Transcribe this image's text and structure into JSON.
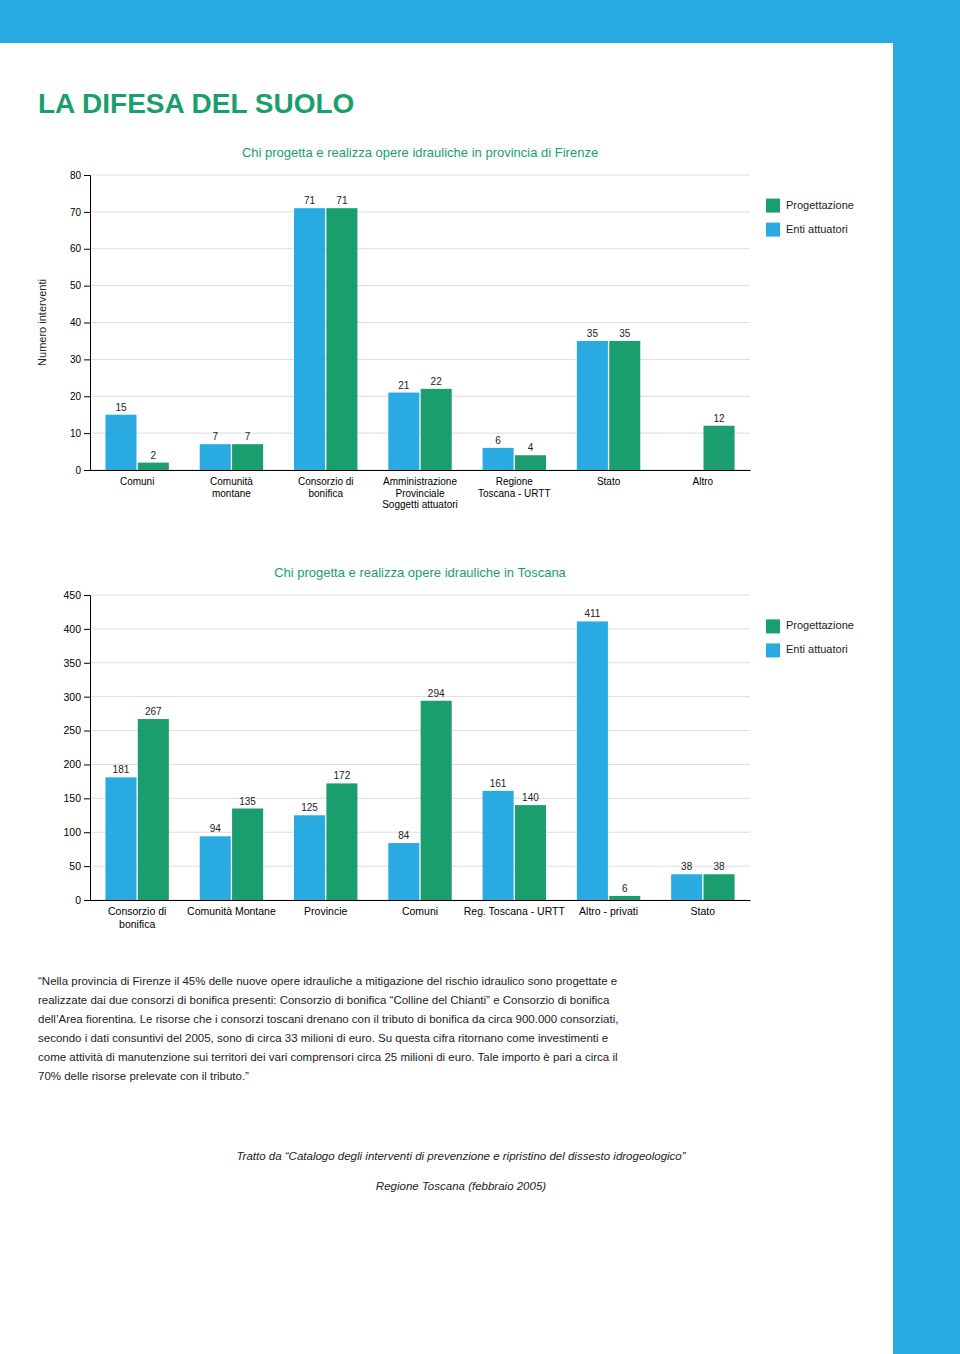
{
  "title": "LA DIFESA DEL SUOLO",
  "body": [
    "“Nella provincia di Firenze il 45% delle nuove opere idrauliche a mitigazione del rischio idraulico sono progettate e",
    "realizzate dai due consorzi di bonifica presenti: Consorzio di bonifica “Colline del Chianti” e Consorzio di bonifica",
    "dell’Area fiorentina. Le risorse che i consorzi toscani drenano con il tributo di bonifica da circa 900.000 consorziati,",
    "secondo i dati consuntivi del 2005, sono di circa 33 milioni di euro. Su questa cifra ritornano come investimenti e",
    "come attività di manutenzione sui territori dei vari comprensori circa 25 milioni di euro. Tale importo è pari a circa il",
    "70% delle risorse prelevate con il tributo.”"
  ],
  "source": [
    "Tratto da “Catalogo degli interventi di prevenzione e ripristino del dissesto idrogeologico”",
    "Regione Toscana (febbraio 2005)"
  ],
  "chart_data": [
    {
      "type": "bar",
      "title": "Chi progetta e realizza opere idrauliche in provincia di Firenze",
      "categories": [
        "Comuni",
        "Comunità\nmontane",
        "Consorzio di\nbonifica",
        "Amministrazione\nProvinciale\nSoggetti attuatori",
        "Regione\nToscana - URTT",
        "Stato",
        "Altro"
      ],
      "series": [
        {
          "name": "Enti attuatori",
          "color": "#29abe2",
          "values": [
            15,
            7,
            71,
            21,
            6,
            35,
            0
          ]
        },
        {
          "name": "Progettazione",
          "color": "#1a9e6e",
          "values": [
            2,
            7,
            71,
            22,
            4,
            35,
            12
          ]
        }
      ],
      "ylabel": "Numero interventi",
      "ylim": [
        0,
        80
      ],
      "yticks": [
        0,
        10,
        20,
        30,
        40,
        50,
        60,
        70,
        80
      ],
      "grid": true,
      "legend": "right",
      "data_labels": true
    },
    {
      "type": "bar",
      "title": "Chi progetta e realizza opere idrauliche in Toscana",
      "categories": [
        "Consorzio di\nbonifica",
        "Comunità Montane",
        "Provincie",
        "Comuni",
        "Reg. Toscana - URTT",
        "Altro - privati",
        "Stato"
      ],
      "series": [
        {
          "name": "Enti attuatori",
          "color": "#29abe2",
          "values": [
            181,
            94,
            125,
            84,
            161,
            411,
            38
          ]
        },
        {
          "name": "Progettazione",
          "color": "#1a9e6e",
          "values": [
            267,
            135,
            172,
            294,
            140,
            6,
            38
          ]
        }
      ],
      "ylim": [
        0,
        450
      ],
      "yticks": [
        0,
        50,
        100,
        150,
        200,
        250,
        300,
        350,
        400,
        450
      ],
      "grid": true,
      "legend": "right",
      "data_labels": true
    }
  ]
}
